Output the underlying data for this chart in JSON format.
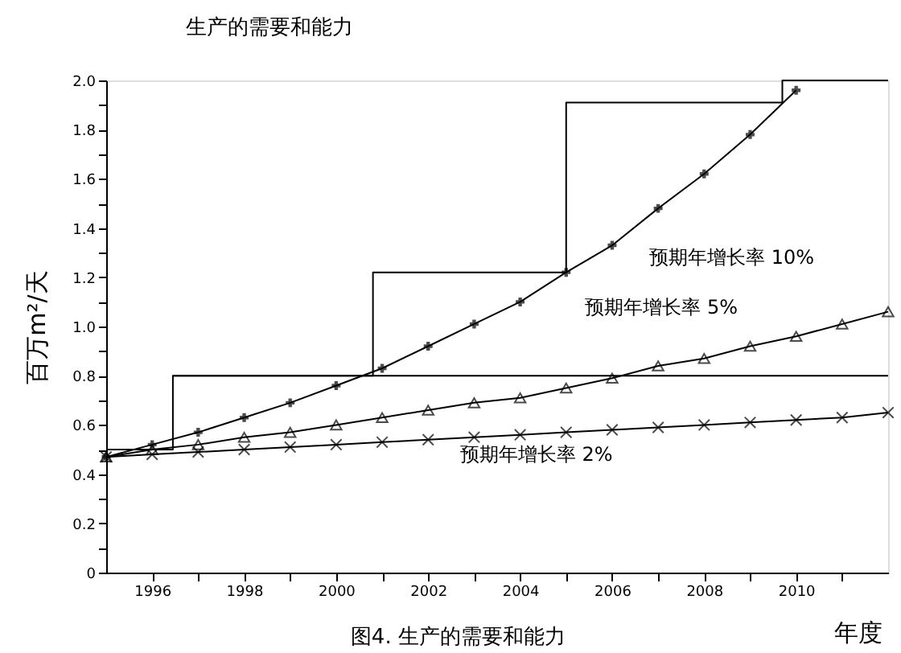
{
  "chart_data": {
    "type": "line",
    "title": "生产的需要和能力",
    "xlabel": "年度",
    "ylabel": "百万m²/天",
    "xlim": [
      1995,
      2012
    ],
    "ylim": [
      0,
      2.0
    ],
    "xticks": [
      {
        "value": 1996,
        "label": "1996"
      },
      {
        "value": 1997,
        "label": null
      },
      1998,
      {
        "value": 1999,
        "label": null
      },
      2000,
      {
        "value": 2001,
        "label": null
      },
      2002,
      {
        "value": 2003,
        "label": null
      },
      2004,
      {
        "value": 2005,
        "label": null
      },
      2006,
      {
        "value": 2007,
        "label": null
      },
      2008,
      {
        "value": 2009,
        "label": null
      },
      2010,
      {
        "value": 2011,
        "label": null
      }
    ],
    "yticks": [
      0,
      {
        "value": 0.1,
        "label": null
      },
      0.2,
      {
        "value": 0.3,
        "label": null
      },
      0.4,
      {
        "value": 0.5,
        "label": null
      },
      0.6,
      {
        "value": 0.7,
        "label": null
      },
      0.8,
      {
        "value": 0.9,
        "label": null
      },
      {
        "value": 1.0,
        "label": "1.0"
      },
      {
        "value": 1.1,
        "label": null
      },
      1.2,
      {
        "value": 1.3,
        "label": null
      },
      1.4,
      {
        "value": 1.5,
        "label": null
      },
      1.6,
      {
        "value": 1.7,
        "label": null
      },
      1.8,
      {
        "value": 1.9,
        "label": null
      },
      {
        "value": 2.0,
        "label": "2.0"
      }
    ],
    "grid": false,
    "line_style": "solid",
    "series": [
      {
        "type": "line",
        "name": "预期年增长率 10%",
        "color": "#000000",
        "marker": "cross",
        "x": [
          1995,
          1996,
          1997,
          1998,
          1999,
          2000,
          2001,
          2002,
          2003,
          2004,
          2005,
          2006,
          2007,
          2008,
          2009,
          2010
        ],
        "values": [
          0.47,
          0.52,
          0.57,
          0.63,
          0.69,
          0.76,
          0.83,
          0.92,
          1.01,
          1.1,
          1.22,
          1.33,
          1.48,
          1.62,
          1.78,
          1.96
        ]
      },
      {
        "type": "line",
        "name": "预期年增长率 5%",
        "color": "#000000",
        "marker": "triangle",
        "x": [
          1995,
          1996,
          1997,
          1998,
          1999,
          2000,
          2001,
          2002,
          2003,
          2004,
          2005,
          2006,
          2007,
          2008,
          2009,
          2010,
          2011,
          2012
        ],
        "values": [
          0.47,
          0.5,
          0.52,
          0.55,
          0.57,
          0.6,
          0.63,
          0.66,
          0.69,
          0.71,
          0.75,
          0.79,
          0.84,
          0.87,
          0.92,
          0.96,
          1.01,
          1.06
        ]
      },
      {
        "type": "line",
        "name": "预期年增长率 2%",
        "color": "#000000",
        "marker": "x",
        "x": [
          1995,
          1996,
          1997,
          1998,
          1999,
          2000,
          2001,
          2002,
          2003,
          2004,
          2005,
          2006,
          2007,
          2008,
          2009,
          2010,
          2011,
          2012
        ],
        "values": [
          0.47,
          0.48,
          0.49,
          0.5,
          0.51,
          0.52,
          0.53,
          0.54,
          0.55,
          0.56,
          0.57,
          0.58,
          0.59,
          0.6,
          0.61,
          0.62,
          0.63,
          0.65
        ]
      },
      {
        "type": "step",
        "color": "#000000",
        "marker": "none",
        "x": [
          1995,
          1996.45,
          2012
        ],
        "values": [
          0.5,
          0.8,
          0.8
        ]
      },
      {
        "type": "step",
        "color": "#000000",
        "marker": "none",
        "x": [
          1996.45,
          2000.8,
          2005,
          2009.7,
          2012
        ],
        "values": [
          0.8,
          1.22,
          1.91,
          2.0,
          2.0
        ]
      }
    ],
    "annotations": [
      "图4. 生产的需要和能力"
    ]
  }
}
